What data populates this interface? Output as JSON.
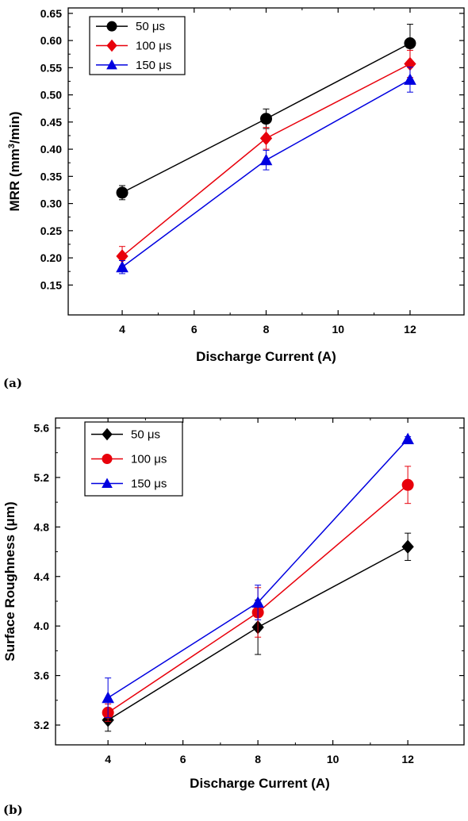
{
  "panel_labels": [
    "(a)",
    "(b)"
  ],
  "colors": {
    "series_black": "#000000",
    "series_red": "#e8000b",
    "series_blue": "#0000e0"
  },
  "chart_data": [
    {
      "type": "line",
      "xlabel": "Discharge Current (A)",
      "ylabel_parts": {
        "main": "MRR (mm",
        "sup": "3",
        "tail": "/min)"
      },
      "ylabel": "MRR (mm3/min)",
      "x": [
        4,
        8,
        12
      ],
      "xlim": [
        2.5,
        13.5
      ],
      "ylim": [
        0.095,
        0.66
      ],
      "xticks": [
        4,
        6,
        8,
        10,
        12
      ],
      "yticks": [
        0.15,
        0.2,
        0.25,
        0.3,
        0.35,
        0.4,
        0.45,
        0.5,
        0.55,
        0.6,
        0.65
      ],
      "ytick_labels": [
        "0.15",
        "0.20",
        "0.25",
        "0.30",
        "0.35",
        "0.40",
        "0.45",
        "0.50",
        "0.55",
        "0.60",
        "0.65"
      ],
      "legend_position": "top-left",
      "grid": false,
      "series": [
        {
          "name": "50 μs",
          "marker": "circle",
          "color": "#000000",
          "values": [
            0.32,
            0.456,
            0.595
          ],
          "errors": [
            0.013,
            0.018,
            0.035
          ]
        },
        {
          "name": "100 μs",
          "marker": "diamond",
          "color": "#e8000b",
          "values": [
            0.203,
            0.42,
            0.557
          ],
          "errors": [
            0.018,
            0.02,
            0.025
          ]
        },
        {
          "name": "150 μs",
          "marker": "triangle",
          "color": "#0000e0",
          "values": [
            0.183,
            0.38,
            0.528
          ],
          "errors": [
            0.012,
            0.018,
            0.023
          ]
        }
      ]
    },
    {
      "type": "line",
      "xlabel": "Discharge Current (A)",
      "ylabel": "Surface Roughness (μm)",
      "x": [
        4,
        8,
        12
      ],
      "xlim": [
        2.6,
        13.5
      ],
      "ylim": [
        3.04,
        5.68
      ],
      "xticks": [
        4,
        6,
        8,
        10,
        12
      ],
      "yticks": [
        3.2,
        3.6,
        4.0,
        4.4,
        4.8,
        5.2,
        5.6
      ],
      "ytick_labels": [
        "3.2",
        "3.6",
        "4.0",
        "4.4",
        "4.8",
        "5.2",
        "5.6"
      ],
      "legend_position": "top-left",
      "grid": false,
      "series": [
        {
          "name": "50 μs",
          "marker": "diamond",
          "color": "#000000",
          "values": [
            3.24,
            3.99,
            4.64
          ],
          "errors": [
            0.09,
            0.22,
            0.11
          ]
        },
        {
          "name": "100 μs",
          "marker": "circle",
          "color": "#e8000b",
          "values": [
            3.3,
            4.11,
            5.14
          ],
          "errors": [
            0.07,
            0.2,
            0.15
          ]
        },
        {
          "name": "150 μs",
          "marker": "triangle",
          "color": "#0000e0",
          "values": [
            3.42,
            4.19,
            5.51
          ],
          "errors": [
            0.16,
            0.14,
            0.02
          ]
        }
      ]
    }
  ]
}
